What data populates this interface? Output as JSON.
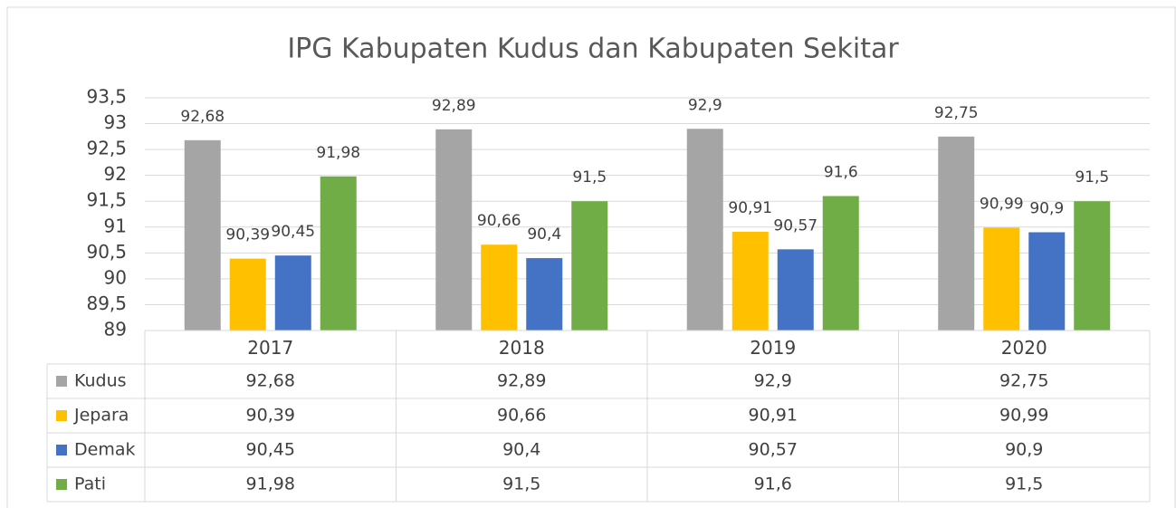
{
  "chart_data": {
    "type": "bar",
    "title": "IPG Kabupaten Kudus dan Kabupaten Sekitar",
    "categories": [
      "2017",
      "2018",
      "2019",
      "2020"
    ],
    "series": [
      {
        "name": "Kudus",
        "color": "#a5a5a5",
        "values": [
          92.68,
          92.89,
          92.9,
          92.75
        ],
        "value_labels": [
          "92,68",
          "92,89",
          "92,9",
          "92,75"
        ]
      },
      {
        "name": "Jepara",
        "color": "#ffc000",
        "values": [
          90.39,
          90.66,
          90.91,
          90.99
        ],
        "value_labels": [
          "90,39",
          "90,66",
          "90,91",
          "90,99"
        ]
      },
      {
        "name": "Demak",
        "color": "#4472c4",
        "values": [
          90.45,
          90.4,
          90.57,
          90.9
        ],
        "value_labels": [
          "90,45",
          "90,4",
          "90,57",
          "90,9"
        ]
      },
      {
        "name": "Pati",
        "color": "#70ad47",
        "values": [
          91.98,
          91.5,
          91.6,
          91.5
        ],
        "value_labels": [
          "91,98",
          "91,5",
          "91,6",
          "91,5"
        ]
      }
    ],
    "ylim": [
      89,
      93.5
    ],
    "yticks": [
      89,
      {
        "value": 89.5,
        "label": "89,5"
      },
      90,
      {
        "value": 90.5,
        "label": "90,5"
      },
      91,
      {
        "value": 91.5,
        "label": "91,5"
      },
      92,
      {
        "value": 92.5,
        "label": "92,5"
      },
      93,
      {
        "value": 93.5,
        "label": "93,5"
      }
    ],
    "grid": true,
    "data_table": true
  }
}
